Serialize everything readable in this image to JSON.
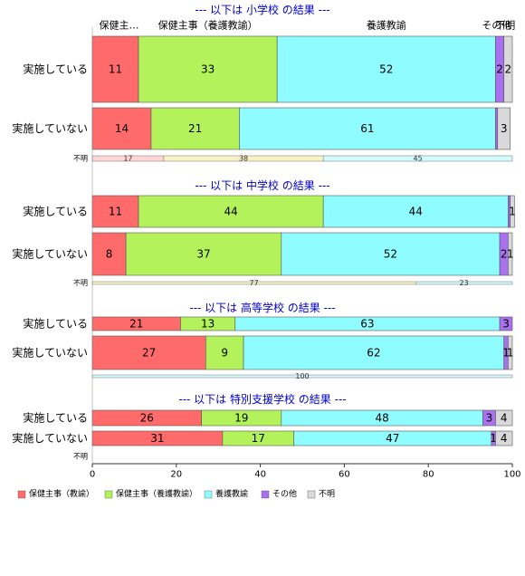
{
  "chart_data": {
    "type": "bar",
    "orientation": "horizontal-stacked-100",
    "categories": [
      "保健主事（教諭）",
      "保健主事（養護教諭）",
      "養護教諭",
      "その他",
      "不明"
    ],
    "colors": [
      "#ff6b6b",
      "#b3f25a",
      "#8ffcff",
      "#a970f0",
      "#d9d9d9"
    ],
    "header_labels": [
      "保健主…",
      "保健主事（養護教諭）",
      "養護教諭",
      "その他",
      "不明"
    ],
    "xlim": [
      0,
      100
    ],
    "xticks": [
      "0",
      "20",
      "40",
      "60",
      "80",
      "100"
    ],
    "legend_position": "bottom-left",
    "grid": false,
    "sections": [
      {
        "title": "--- 以下は 小学校 の結果 ---",
        "rows": [
          {
            "label": "実施している",
            "values": [
              11,
              33,
              52,
              2,
              2
            ],
            "labels": [
              "11",
              "33",
              "52",
              "2",
              "2"
            ]
          },
          {
            "label": "実施していない",
            "values": [
              14,
              21,
              61,
              0.5,
              3
            ],
            "labels": [
              "14",
              "21",
              "61",
              "",
              "3"
            ]
          }
        ],
        "unknown": {
          "label": "不明",
          "values": [
            17,
            38,
            45,
            0,
            0
          ],
          "labels": [
            "17",
            "38",
            "45",
            "",
            ""
          ]
        }
      },
      {
        "title": "--- 以下は 中学校 の結果 ---",
        "rows": [
          {
            "label": "実施している",
            "values": [
              11,
              44,
              44,
              0.5,
              1
            ],
            "labels": [
              "11",
              "44",
              "44",
              "",
              "1"
            ]
          },
          {
            "label": "実施していない",
            "values": [
              8,
              37,
              52,
              2,
              1
            ],
            "labels": [
              "8",
              "37",
              "52",
              "2",
              "1"
            ]
          }
        ],
        "unknown": {
          "label": "不明",
          "values": [
            0,
            77,
            23,
            0,
            0
          ],
          "labels": [
            "",
            "77",
            "23",
            "",
            ""
          ]
        }
      },
      {
        "title": "--- 以下は 高等学校 の結果 ---",
        "rows": [
          {
            "label": "実施している",
            "values": [
              21,
              13,
              63,
              3,
              0
            ],
            "labels": [
              "21",
              "13",
              "63",
              "3",
              ""
            ]
          },
          {
            "label": "実施していない",
            "values": [
              27,
              9,
              62,
              1,
              1
            ],
            "labels": [
              "27",
              "9",
              "62",
              "1",
              "1"
            ]
          }
        ],
        "unknown": {
          "label": "",
          "values": [
            0,
            0,
            100,
            0,
            0
          ],
          "labels": [
            "",
            "",
            "100",
            "",
            ""
          ]
        }
      },
      {
        "title": "--- 以下は 特別支援学校 の結果 ---",
        "rows": [
          {
            "label": "実施している",
            "values": [
              26,
              19,
              48,
              3,
              4
            ],
            "labels": [
              "26",
              "19",
              "48",
              "3",
              "4"
            ]
          },
          {
            "label": "実施していない",
            "values": [
              31,
              17,
              47,
              1,
              4
            ],
            "labels": [
              "31",
              "17",
              "47",
              "1",
              "4"
            ]
          }
        ],
        "unknown": {
          "label": "不明",
          "values": [],
          "labels": []
        }
      }
    ]
  }
}
